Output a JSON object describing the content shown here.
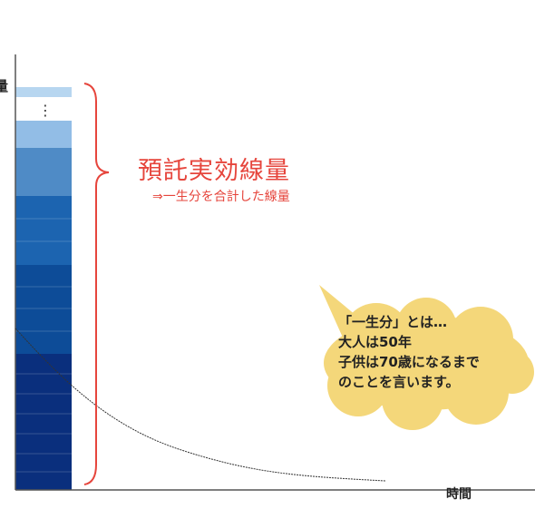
{
  "diagram": {
    "y_axis_label": "量",
    "x_axis_label": "時間",
    "title": "預託実効線量",
    "subtitle": "⇒一生分を合計した線量",
    "bubble_lines": [
      "「一生分」とは…",
      "大人は50年",
      "子供は70歳になるまで",
      "のことを言います。"
    ],
    "ellipsis": "⋮"
  },
  "colors": {
    "title": "#e6453c",
    "brace": "#e6453c",
    "bubble_fill": "#f4d77a",
    "bar_lightest": "#b7d6f0",
    "bar_light": "#92bde6",
    "bar_mid_light": "#4f8bc6",
    "bar_mid": "#1c64b0",
    "bar_dark": "#0d4c98",
    "bar_darkest": "#0a2f7d",
    "axis": "#555555",
    "curve": "#333333"
  }
}
